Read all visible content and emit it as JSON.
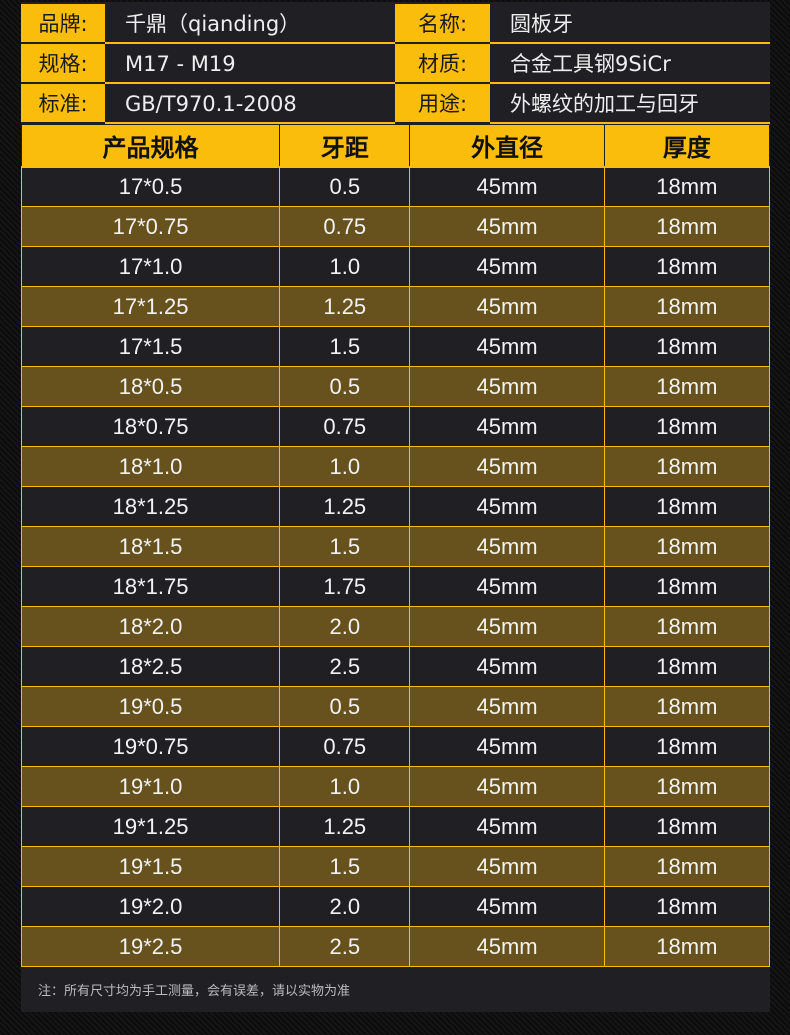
{
  "info": [
    {
      "label": "品牌:",
      "value": "千鼎（qianding）",
      "label2": "名称:",
      "value2": "圆板牙"
    },
    {
      "label": "规格:",
      "value": "M17 - M19",
      "label2": "材质:",
      "value2": "合金工具钢9SiCr"
    },
    {
      "label": "标准:",
      "value": "GB/T970.1-2008",
      "label2": "用途:",
      "value2": "外螺纹的加工与回牙"
    }
  ],
  "table": {
    "headers": [
      "产品规格",
      "牙距",
      "外直径",
      "厚度"
    ],
    "rows": [
      [
        "17*0.5",
        "0.5",
        "45mm",
        "18mm"
      ],
      [
        "17*0.75",
        "0.75",
        "45mm",
        "18mm"
      ],
      [
        "17*1.0",
        "1.0",
        "45mm",
        "18mm"
      ],
      [
        "17*1.25",
        "1.25",
        "45mm",
        "18mm"
      ],
      [
        "17*1.5",
        "1.5",
        "45mm",
        "18mm"
      ],
      [
        "18*0.5",
        "0.5",
        "45mm",
        "18mm"
      ],
      [
        "18*0.75",
        "0.75",
        "45mm",
        "18mm"
      ],
      [
        "18*1.0",
        "1.0",
        "45mm",
        "18mm"
      ],
      [
        "18*1.25",
        "1.25",
        "45mm",
        "18mm"
      ],
      [
        "18*1.5",
        "1.5",
        "45mm",
        "18mm"
      ],
      [
        "18*1.75",
        "1.75",
        "45mm",
        "18mm"
      ],
      [
        "18*2.0",
        "2.0",
        "45mm",
        "18mm"
      ],
      [
        "18*2.5",
        "2.5",
        "45mm",
        "18mm"
      ],
      [
        "19*0.5",
        "0.5",
        "45mm",
        "18mm"
      ],
      [
        "19*0.75",
        "0.75",
        "45mm",
        "18mm"
      ],
      [
        "19*1.0",
        "1.0",
        "45mm",
        "18mm"
      ],
      [
        "19*1.25",
        "1.25",
        "45mm",
        "18mm"
      ],
      [
        "19*1.5",
        "1.5",
        "45mm",
        "18mm"
      ],
      [
        "19*2.0",
        "2.0",
        "45mm",
        "18mm"
      ],
      [
        "19*2.5",
        "2.5",
        "45mm",
        "18mm"
      ]
    ]
  },
  "note": "注：所有尺寸均为手工测量，会有误差，请以实物为准",
  "colors": {
    "accent": "#fbbd0b",
    "dark": "#201f24",
    "olive": "#67521d"
  }
}
